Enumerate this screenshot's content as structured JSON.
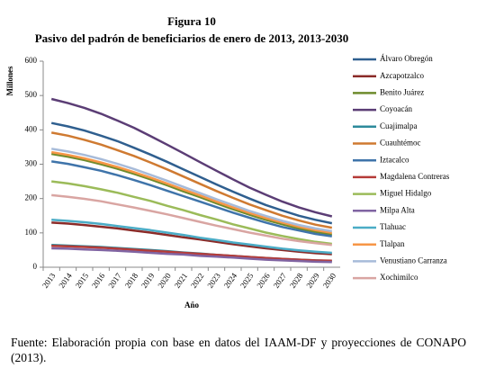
{
  "chart_data": {
    "type": "line",
    "title": "Figura 10",
    "subtitle": "Pasivo del padrón de beneficiarios de enero de 2013, 2013-2030",
    "y_label": "Millones",
    "x_label": "Año",
    "categories": [
      "2013",
      "2014",
      "2015",
      "2016",
      "2017",
      "2018",
      "2019",
      "2020",
      "2021",
      "2022",
      "2023",
      "2024",
      "2025",
      "2026",
      "2027",
      "2028",
      "2029",
      "2030"
    ],
    "ylim": [
      0,
      600
    ],
    "yticks": [
      0,
      100,
      200,
      300,
      400,
      500,
      600
    ],
    "grid": false,
    "legend": "right",
    "series": [
      {
        "name": "Álvaro Obregón",
        "color": "#2f5f8f",
        "values": [
          420,
          410,
          398,
          383,
          367,
          348,
          328,
          307,
          285,
          263,
          241,
          220,
          200,
          181,
          165,
          150,
          138,
          128
        ]
      },
      {
        "name": "Azcapotzalco",
        "color": "#8b2b28",
        "values": [
          130,
          127,
          123,
          118,
          113,
          107,
          101,
          94,
          87,
          81,
          74,
          67,
          61,
          55,
          50,
          45,
          41,
          38
        ]
      },
      {
        "name": "Benito Juárez",
        "color": "#6e8b2c",
        "values": [
          330,
          322,
          312,
          300,
          287,
          272,
          256,
          239,
          221,
          204,
          186,
          169,
          153,
          138,
          125,
          113,
          103,
          95
        ]
      },
      {
        "name": "Coyoacán",
        "color": "#5b3d75",
        "values": [
          490,
          478,
          464,
          447,
          427,
          406,
          382,
          357,
          332,
          306,
          281,
          256,
          232,
          211,
          191,
          174,
          160,
          148
        ]
      },
      {
        "name": "Cuajimalpa",
        "color": "#2d8a9b",
        "values": [
          65,
          63,
          61,
          59,
          56,
          53,
          50,
          47,
          43,
          40,
          36,
          33,
          30,
          27,
          24,
          22,
          20,
          18
        ]
      },
      {
        "name": "Cuauhtémoc",
        "color": "#cf7a31",
        "values": [
          392,
          383,
          371,
          357,
          341,
          324,
          305,
          285,
          264,
          243,
          222,
          202,
          183,
          166,
          150,
          136,
          124,
          115
        ]
      },
      {
        "name": "Iztacalco",
        "color": "#3f74aa",
        "values": [
          308,
          301,
          291,
          281,
          268,
          254,
          239,
          223,
          207,
          191,
          175,
          159,
          144,
          130,
          117,
          107,
          97,
          90
        ]
      },
      {
        "name": "Magdalena Contreras",
        "color": "#b53b38",
        "values": [
          62,
          61,
          59,
          57,
          54,
          51,
          48,
          45,
          42,
          39,
          36,
          33,
          30,
          27,
          24,
          22,
          20,
          19
        ]
      },
      {
        "name": "Miguel Hidalgo",
        "color": "#9bbb59",
        "values": [
          250,
          244,
          236,
          227,
          217,
          205,
          193,
          179,
          166,
          152,
          139,
          125,
          113,
          101,
          91,
          82,
          74,
          68
        ]
      },
      {
        "name": "Milpa Alta",
        "color": "#8064a2",
        "values": [
          55,
          54,
          52,
          50,
          48,
          45,
          42,
          39,
          37,
          33,
          31,
          28,
          25,
          22,
          20,
          18,
          16,
          15
        ]
      },
      {
        "name": "Tlahuac",
        "color": "#4bacc6",
        "values": [
          138,
          135,
          131,
          126,
          120,
          114,
          108,
          101,
          94,
          86,
          79,
          72,
          66,
          60,
          54,
          49,
          45,
          42
        ]
      },
      {
        "name": "Tlalpan",
        "color": "#f79646",
        "values": [
          335,
          327,
          317,
          305,
          292,
          277,
          261,
          244,
          226,
          209,
          191,
          174,
          158,
          143,
          130,
          118,
          108,
          100
        ]
      },
      {
        "name": "Venustiano Carranza",
        "color": "#a7bbd9",
        "values": [
          345,
          337,
          327,
          315,
          301,
          286,
          269,
          252,
          234,
          216,
          198,
          181,
          164,
          149,
          135,
          123,
          113,
          105
        ]
      },
      {
        "name": "Xochimilco",
        "color": "#d9a5a2",
        "values": [
          210,
          205,
          199,
          192,
          183,
          174,
          164,
          154,
          143,
          132,
          121,
          111,
          101,
          92,
          83,
          76,
          70,
          65
        ]
      }
    ]
  },
  "footer": "Fuente: Elaboración propia con base en datos del IAAM-DF y proyecciones de CONAPO (2013)."
}
